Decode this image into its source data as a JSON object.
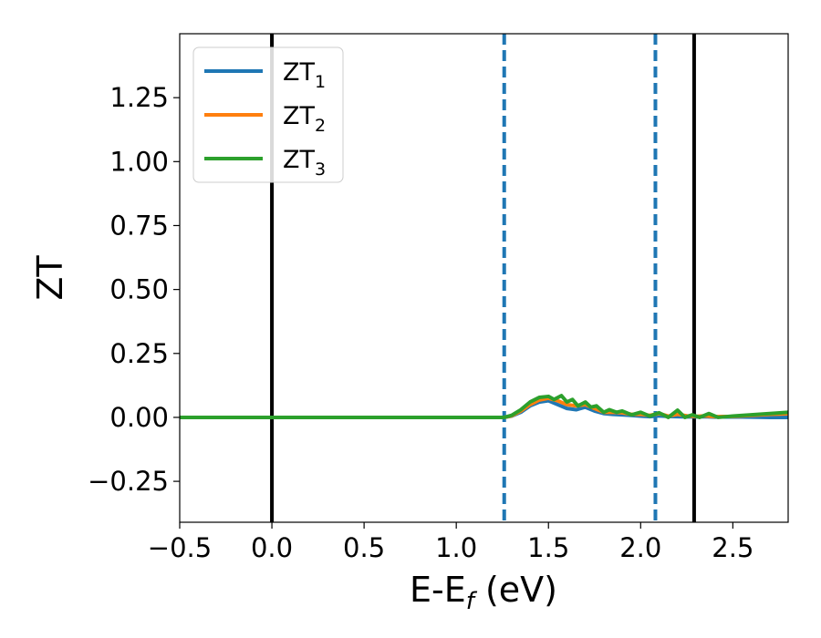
{
  "chart_data": {
    "type": "line",
    "xlabel": {
      "main": "E-E",
      "sub": "f",
      "unit": " (eV)"
    },
    "ylabel": "ZT",
    "xlim": [
      -0.5,
      2.8
    ],
    "ylim": [
      -0.41,
      1.5
    ],
    "xticks": [
      -0.5,
      0.0,
      0.5,
      1.0,
      1.5,
      2.0,
      2.5
    ],
    "xtick_labels": [
      "−0.5",
      "0.0",
      "0.5",
      "1.0",
      "1.5",
      "2.0",
      "2.5"
    ],
    "yticks": [
      -0.25,
      0.0,
      0.25,
      0.5,
      0.75,
      1.0,
      1.25
    ],
    "ytick_labels": [
      "−0.25",
      "0.00",
      "0.25",
      "0.50",
      "0.75",
      "1.00",
      "1.25"
    ],
    "grid": false,
    "legend_position": "top-left",
    "vlines": [
      {
        "x": 0.0,
        "style": "solid",
        "color": "#000000"
      },
      {
        "x": 1.26,
        "style": "dashed",
        "color": "#1f77b4"
      },
      {
        "x": 2.08,
        "style": "dashed",
        "color": "#1f77b4"
      },
      {
        "x": 2.29,
        "style": "solid",
        "color": "#000000"
      }
    ],
    "series": [
      {
        "name": "ZT",
        "sub": "1",
        "color": "#1f77b4",
        "x": [
          -0.5,
          1.26,
          1.3,
          1.35,
          1.4,
          1.45,
          1.5,
          1.55,
          1.6,
          1.65,
          1.7,
          1.75,
          1.8,
          1.85,
          1.9,
          1.95,
          2.0,
          2.05,
          2.1,
          2.15,
          2.2,
          2.25,
          2.3,
          2.35,
          2.4,
          2.5,
          2.6,
          2.7,
          2.8
        ],
        "y": [
          0.0,
          0.0,
          0.005,
          0.02,
          0.045,
          0.06,
          0.065,
          0.05,
          0.035,
          0.03,
          0.04,
          0.025,
          0.015,
          0.012,
          0.01,
          0.008,
          0.005,
          0.003,
          0.006,
          0.004,
          0.003,
          0.002,
          0.002,
          0.003,
          0.001,
          0.002,
          0.001,
          0.0,
          0.0
        ]
      },
      {
        "name": "ZT",
        "sub": "2",
        "color": "#ff7f0e",
        "x": [
          -0.5,
          1.26,
          1.3,
          1.35,
          1.4,
          1.45,
          1.5,
          1.55,
          1.6,
          1.65,
          1.7,
          1.75,
          1.8,
          1.85,
          1.9,
          1.95,
          2.0,
          2.05,
          2.1,
          2.15,
          2.2,
          2.25,
          2.3,
          2.35,
          2.4,
          2.5,
          2.6,
          2.7,
          2.8
        ],
        "y": [
          0.0,
          0.0,
          0.006,
          0.025,
          0.05,
          0.068,
          0.075,
          0.065,
          0.05,
          0.045,
          0.05,
          0.035,
          0.02,
          0.02,
          0.018,
          0.012,
          0.012,
          0.008,
          0.015,
          0.005,
          0.012,
          0.006,
          0.004,
          0.006,
          0.003,
          0.004,
          0.008,
          0.012,
          0.014
        ]
      },
      {
        "name": "ZT",
        "sub": "3",
        "color": "#2ca02c",
        "x": [
          -0.5,
          1.26,
          1.3,
          1.35,
          1.4,
          1.45,
          1.5,
          1.53,
          1.57,
          1.6,
          1.63,
          1.66,
          1.7,
          1.73,
          1.76,
          1.8,
          1.83,
          1.87,
          1.9,
          1.95,
          2.0,
          2.05,
          2.1,
          2.15,
          2.2,
          2.24,
          2.28,
          2.32,
          2.37,
          2.42,
          2.5,
          2.6,
          2.7,
          2.8
        ],
        "y": [
          0.0,
          0.0,
          0.008,
          0.03,
          0.06,
          0.078,
          0.082,
          0.07,
          0.085,
          0.06,
          0.07,
          0.045,
          0.06,
          0.04,
          0.045,
          0.02,
          0.03,
          0.02,
          0.025,
          0.01,
          0.02,
          0.005,
          0.018,
          0.0,
          0.028,
          0.0,
          0.01,
          0.0,
          0.015,
          0.0,
          0.005,
          0.01,
          0.015,
          0.02
        ]
      }
    ]
  }
}
